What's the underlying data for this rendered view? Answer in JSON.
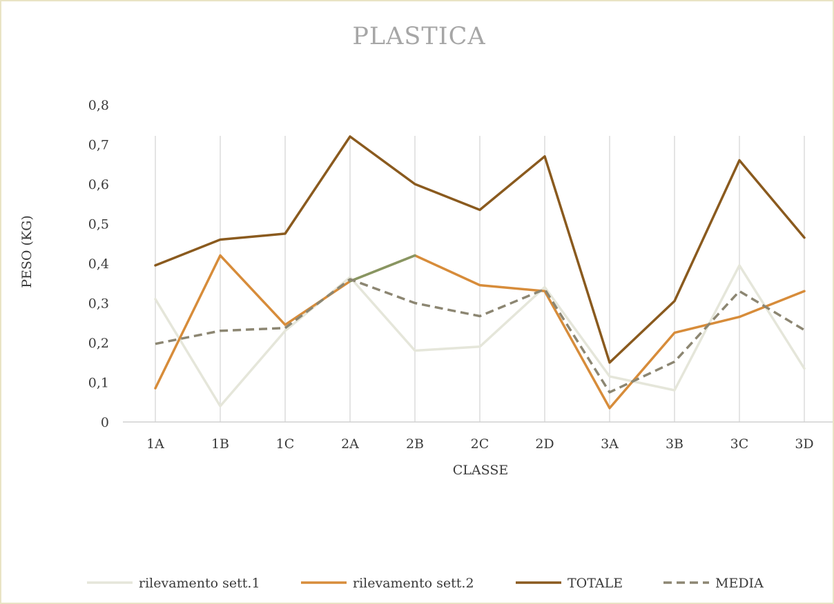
{
  "chart_data": {
    "type": "line",
    "title": "PLASTICA",
    "xlabel": "CLASSE",
    "ylabel": "PESO (KG)",
    "categories": [
      "1A",
      "1B",
      "1C",
      "2A",
      "2B",
      "2C",
      "2D",
      "3A",
      "3B",
      "3C",
      "3D"
    ],
    "yticks": [
      "0",
      "0,1",
      "0,2",
      "0,3",
      "0,4",
      "0,5",
      "0,6",
      "0,7",
      "0,8"
    ],
    "ylim": [
      0,
      0.8
    ],
    "grid": "vertical",
    "legend_position": "bottom",
    "series": [
      {
        "name": "rilevamento sett.1",
        "color": "#e5e6da",
        "dash": "solid",
        "values": [
          0.31,
          0.04,
          0.23,
          0.365,
          0.18,
          0.19,
          0.34,
          0.115,
          0.08,
          0.395,
          0.135
        ]
      },
      {
        "name": "rilevamento sett.2",
        "color": "#d78c3a",
        "dash": "solid",
        "values": [
          0.085,
          0.42,
          0.245,
          0.355,
          0.42,
          0.345,
          0.33,
          0.035,
          0.225,
          0.265,
          0.33
        ]
      },
      {
        "name": "TOTALE",
        "color": "#8a5a1e",
        "dash": "solid",
        "values": [
          0.395,
          0.46,
          0.475,
          0.72,
          0.6,
          0.535,
          0.67,
          0.15,
          0.305,
          0.66,
          0.465
        ]
      },
      {
        "name": "MEDIA",
        "color": "#8c8672",
        "dash": "dashed",
        "values": [
          0.197,
          0.23,
          0.237,
          0.36,
          0.3,
          0.267,
          0.335,
          0.075,
          0.152,
          0.33,
          0.232
        ]
      }
    ],
    "highlight": {
      "series": "rilevamento sett.2",
      "from_category": "2A",
      "to_category": "2B",
      "color": "#879663"
    }
  }
}
